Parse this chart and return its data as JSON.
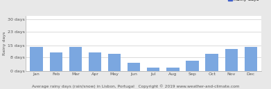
{
  "months": [
    "Jan",
    "Feb",
    "Mar",
    "Apr",
    "May",
    "Jun",
    "Jul",
    "Aug",
    "Sep",
    "Oct",
    "Nov",
    "Dec"
  ],
  "values": [
    14,
    11,
    14,
    11,
    10,
    5,
    2,
    2,
    6,
    10,
    13,
    14
  ],
  "bar_color": "#7ba7e0",
  "background_color": "#e8e8e8",
  "plot_bg_color": "#ffffff",
  "ylabel": "Rainy days",
  "yticks": [
    0,
    8,
    15,
    23,
    30
  ],
  "ylim": [
    0,
    32
  ],
  "ytick_labels": [
    "0 days",
    "8 days",
    "15 days",
    "23 days",
    "30 days"
  ],
  "legend_label": "Rainy days",
  "legend_color": "#4060cc",
  "footer": "Average rainy days (rain/snow) in Lisbon, Portugal   Copyright © 2019 www.weather-and-climate.com",
  "footer_fontsize": 4.2,
  "axis_fontsize": 4.5,
  "tick_fontsize": 4.5,
  "grid_color": "#cccccc",
  "spine_color": "#aaaaaa",
  "legend_fontsize": 4.8
}
